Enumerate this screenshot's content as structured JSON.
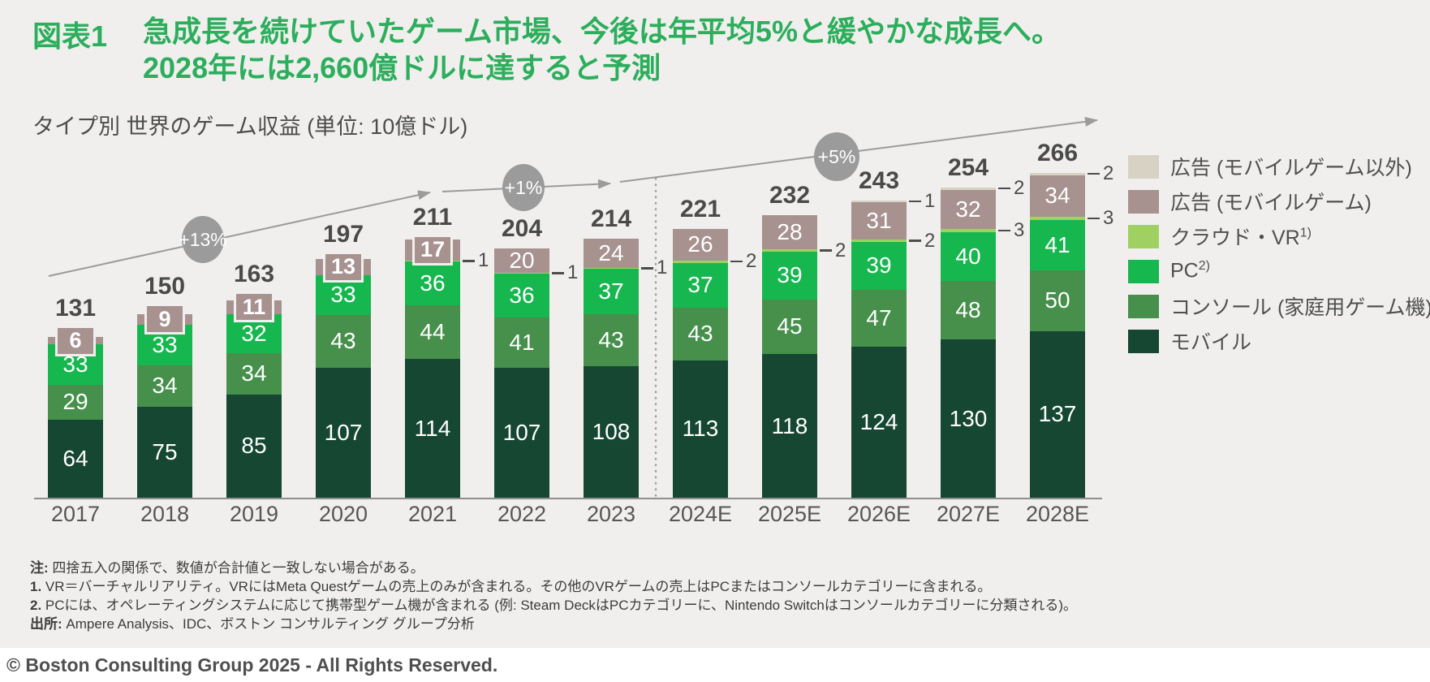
{
  "header": {
    "tag": "図表1",
    "title_line1": "急成長を続けていたゲーム市場、今後は年平均5%と緩やかな成長へ。",
    "title_line2": "2028年には2,660億ドルに達すると予測",
    "subtitle": "タイプ別 世界のゲーム収益 (単位: 10億ドル)"
  },
  "chart_data": {
    "type": "bar",
    "stacked": true,
    "unit": "10億ドル (billion USD)",
    "grid": false,
    "legend_position": "right",
    "categories": [
      "2017",
      "2018",
      "2019",
      "2020",
      "2021",
      "2022",
      "2023",
      "2024E",
      "2025E",
      "2026E",
      "2027E",
      "2028E"
    ],
    "totals": [
      131,
      150,
      163,
      197,
      211,
      204,
      214,
      221,
      232,
      243,
      254,
      266
    ],
    "series": [
      {
        "name": "モバイル",
        "key": "mobile",
        "color": "#154733",
        "values": [
          64,
          75,
          85,
          107,
          114,
          107,
          108,
          113,
          118,
          124,
          130,
          137
        ]
      },
      {
        "name": "コンソール (家庭用ゲーム機)",
        "key": "console",
        "color": "#46904c",
        "values": [
          29,
          34,
          34,
          43,
          44,
          41,
          43,
          43,
          45,
          47,
          48,
          50
        ]
      },
      {
        "name": "PC",
        "sup": "2)",
        "key": "pc",
        "color": "#17b750",
        "values": [
          33,
          33,
          32,
          33,
          36,
          36,
          37,
          37,
          39,
          39,
          40,
          41
        ]
      },
      {
        "name": "クラウド・VR",
        "sup": "1)",
        "key": "cloud_vr",
        "color": "#9ed162",
        "values": [
          null,
          null,
          null,
          null,
          1,
          1,
          1,
          2,
          2,
          2,
          3,
          3
        ]
      },
      {
        "name": "広告 (モバイルゲーム)",
        "key": "ad_mobile",
        "color": "#a79290",
        "values": [
          6,
          9,
          11,
          13,
          17,
          20,
          24,
          26,
          28,
          31,
          32,
          34
        ]
      },
      {
        "name": "広告 (モバイルゲーム以外)",
        "key": "ad_non_mobile",
        "color": "#d7d2c4",
        "values": [
          null,
          null,
          null,
          null,
          null,
          null,
          null,
          null,
          null,
          1,
          2,
          2
        ]
      }
    ],
    "annotations": [
      {
        "label": "+13%",
        "span": "2017–2021"
      },
      {
        "label": "+1%",
        "span": "2021–2023"
      },
      {
        "label": "+5%",
        "span": "2023–2028E"
      }
    ],
    "divider_after": "2023"
  },
  "footnotes": [
    {
      "prefix": "注:",
      "text": " 四捨五入の関係で、数値が合計値と一致しない場合がある。"
    },
    {
      "prefix": "1.",
      "text": " VR＝バーチャルリアリティ。VRにはMeta Questゲームの売上のみが含まれる。その他のVRゲームの売上はPCまたはコンソールカテゴリーに含まれる。"
    },
    {
      "prefix": "2.",
      "text": " PCには、オペレーティングシステムに応じて携帯型ゲーム機が含まれる (例: Steam DeckはPCカテゴリーに、Nintendo Switchはコンソールカテゴリーに分類される)。"
    },
    {
      "prefix": "出所:",
      "text": " Ampere Analysis、IDC、ボストン コンサルティング グループ分析"
    }
  ],
  "footer": {
    "copyright": "© Boston Consulting Group 2025 - All Rights Reserved."
  },
  "colors": {
    "background": "#f0efed",
    "accent_green": "#2cae5c",
    "annotation_gray": "#9b9b9b",
    "axis_gray": "#8f8f8f",
    "text_dark": "#4a4a4a",
    "footer_bg": "#ffffff"
  }
}
